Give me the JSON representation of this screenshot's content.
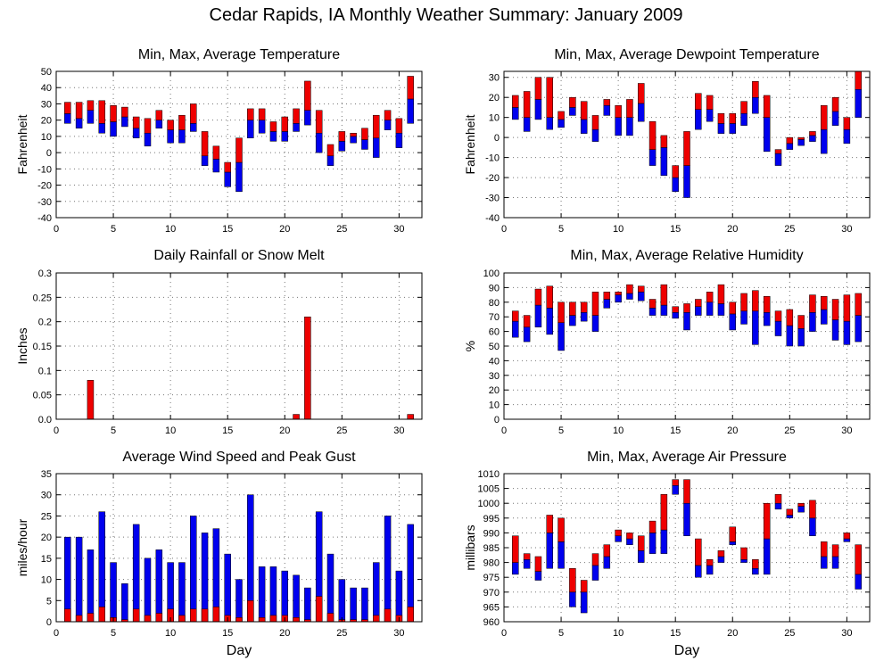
{
  "title": "Cedar Rapids, IA Monthly Weather Summary: January 2009",
  "colors": {
    "min_part": "#0000ee",
    "max_part": "#ee0000",
    "grid": "#777777"
  },
  "chart_data": [
    {
      "id": "temperature",
      "type": "bar",
      "style": "floating-min-avg-max",
      "title": "Min, Max, Average Temperature",
      "xlabel": "",
      "ylabel": "Fahrenheit",
      "xlim": [
        0,
        32
      ],
      "ylim": [
        -40,
        50
      ],
      "xticks": [
        0,
        5,
        10,
        15,
        20,
        25,
        30
      ],
      "yticks": [
        -40,
        -30,
        -20,
        -10,
        0,
        10,
        20,
        30,
        40,
        50
      ],
      "grid": true,
      "days": [
        1,
        2,
        3,
        4,
        5,
        6,
        7,
        8,
        9,
        10,
        11,
        12,
        13,
        14,
        15,
        16,
        17,
        18,
        19,
        20,
        21,
        22,
        23,
        24,
        25,
        26,
        27,
        28,
        29,
        30,
        31
      ],
      "series": [
        {
          "name": "min",
          "values": [
            18,
            15,
            18,
            12,
            10,
            16,
            9,
            4,
            15,
            6,
            6,
            13,
            -8,
            -12,
            -21,
            -24,
            9,
            12,
            7,
            7,
            13,
            17,
            0,
            -8,
            1,
            6,
            2,
            -3,
            14,
            3,
            18
          ]
        },
        {
          "name": "avg",
          "values": [
            24,
            21,
            26,
            18,
            19,
            22,
            15,
            12,
            20,
            14,
            14,
            18,
            -2,
            -4,
            -12,
            -6,
            20,
            20,
            13,
            13,
            18,
            26,
            12,
            -2,
            7,
            10,
            8,
            9,
            20,
            12,
            33
          ]
        },
        {
          "name": "max",
          "values": [
            31,
            31,
            32,
            32,
            29,
            28,
            22,
            21,
            26,
            20,
            23,
            30,
            13,
            4,
            -6,
            9,
            27,
            27,
            19,
            22,
            27,
            44,
            26,
            5,
            13,
            12,
            15,
            23,
            26,
            21,
            47
          ]
        }
      ]
    },
    {
      "id": "dewpoint",
      "type": "bar",
      "style": "floating-min-avg-max",
      "title": "Min, Max, Average Dewpoint Temperature",
      "xlabel": "",
      "ylabel": "Fahrenheit",
      "xlim": [
        0,
        32
      ],
      "ylim": [
        -40,
        33
      ],
      "xticks": [
        0,
        5,
        10,
        15,
        20,
        25,
        30
      ],
      "yticks": [
        -40,
        -30,
        -20,
        -10,
        0,
        10,
        20,
        30
      ],
      "grid": true,
      "days": [
        1,
        2,
        3,
        4,
        5,
        6,
        7,
        8,
        9,
        10,
        11,
        12,
        13,
        14,
        15,
        16,
        17,
        18,
        19,
        20,
        21,
        22,
        23,
        24,
        25,
        26,
        27,
        28,
        29,
        30,
        31
      ],
      "series": [
        {
          "name": "min",
          "values": [
            9,
            3,
            9,
            4,
            5,
            11,
            2,
            -2,
            11,
            1,
            1,
            8,
            -14,
            -19,
            -27,
            -30,
            4,
            8,
            2,
            2,
            6,
            12,
            -7,
            -14,
            -6,
            -4,
            -2,
            -8,
            6,
            -3,
            10
          ]
        },
        {
          "name": "avg",
          "values": [
            15,
            10,
            19,
            10,
            9,
            15,
            9,
            4,
            16,
            10,
            10,
            17,
            -6,
            -5,
            -20,
            -14,
            14,
            14,
            7,
            7,
            12,
            20,
            10,
            -8,
            -3,
            -1,
            1,
            4,
            13,
            4,
            24
          ]
        },
        {
          "name": "max",
          "values": [
            21,
            23,
            30,
            30,
            13,
            20,
            18,
            11,
            19,
            16,
            19,
            27,
            8,
            1,
            -14,
            3,
            22,
            21,
            12,
            12,
            18,
            28,
            21,
            -6,
            0,
            0,
            3,
            16,
            20,
            10,
            33
          ]
        }
      ]
    },
    {
      "id": "rainfall",
      "type": "bar",
      "style": "single",
      "title": "Daily Rainfall or Snow Melt",
      "xlabel": "",
      "ylabel": "Inches",
      "xlim": [
        0,
        32
      ],
      "ylim": [
        0,
        0.3
      ],
      "xticks": [
        0,
        5,
        10,
        15,
        20,
        25,
        30
      ],
      "yticks": [
        0,
        0.05,
        0.1,
        0.15,
        0.2,
        0.25,
        0.3
      ],
      "ytick_labels": [
        "0.0",
        "0.05",
        "0.1",
        "0.15",
        "0.2",
        "0.25",
        "0.3"
      ],
      "grid": true,
      "days": [
        3,
        21,
        22,
        31
      ],
      "values": [
        0.08,
        0.01,
        0.21,
        0.01
      ]
    },
    {
      "id": "humidity",
      "type": "bar",
      "style": "floating-min-avg-max",
      "title": "Min, Max, Average Relative Humidity",
      "xlabel": "",
      "ylabel": "%",
      "xlim": [
        0,
        32
      ],
      "ylim": [
        0,
        100
      ],
      "xticks": [
        0,
        5,
        10,
        15,
        20,
        25,
        30
      ],
      "yticks": [
        0,
        10,
        20,
        30,
        40,
        50,
        60,
        70,
        80,
        90,
        100
      ],
      "grid": true,
      "days": [
        1,
        2,
        3,
        4,
        5,
        6,
        7,
        8,
        9,
        10,
        11,
        12,
        13,
        14,
        15,
        16,
        17,
        18,
        19,
        20,
        21,
        22,
        23,
        24,
        25,
        26,
        27,
        28,
        29,
        30,
        31
      ],
      "series": [
        {
          "name": "min",
          "values": [
            56,
            53,
            63,
            58,
            47,
            64,
            67,
            60,
            76,
            80,
            82,
            81,
            71,
            71,
            69,
            61,
            71,
            71,
            71,
            61,
            65,
            51,
            64,
            57,
            50,
            50,
            60,
            65,
            54,
            51,
            53
          ]
        },
        {
          "name": "avg",
          "values": [
            67,
            63,
            78,
            76,
            66,
            71,
            73,
            71,
            82,
            85,
            86,
            87,
            76,
            78,
            73,
            73,
            77,
            80,
            79,
            72,
            74,
            74,
            73,
            67,
            64,
            62,
            73,
            75,
            68,
            67,
            71
          ]
        },
        {
          "name": "max",
          "values": [
            74,
            71,
            89,
            91,
            80,
            80,
            80,
            87,
            87,
            87,
            92,
            91,
            82,
            92,
            77,
            79,
            82,
            87,
            92,
            80,
            86,
            88,
            84,
            74,
            75,
            71,
            85,
            84,
            82,
            85,
            86
          ]
        }
      ]
    },
    {
      "id": "wind",
      "type": "bar",
      "style": "wind-overlay",
      "title": "Average Wind Speed and Peak Gust",
      "xlabel": "Day",
      "ylabel": "miles/hour",
      "xlim": [
        0,
        32
      ],
      "ylim": [
        0,
        35
      ],
      "xticks": [
        0,
        5,
        10,
        15,
        20,
        25,
        30
      ],
      "yticks": [
        0,
        5,
        10,
        15,
        20,
        25,
        30,
        35
      ],
      "grid": true,
      "days": [
        1,
        2,
        3,
        4,
        5,
        6,
        7,
        8,
        9,
        10,
        11,
        12,
        13,
        14,
        15,
        16,
        17,
        18,
        19,
        20,
        21,
        22,
        23,
        24,
        25,
        26,
        27,
        28,
        29,
        30,
        31
      ],
      "series": [
        {
          "name": "average",
          "values": [
            3,
            1.5,
            2,
            3.5,
            1,
            0.5,
            3,
            1.5,
            2,
            3,
            1.5,
            3,
            3,
            3.5,
            1.5,
            1,
            5,
            1,
            1.5,
            1.5,
            1,
            0.5,
            6,
            2,
            0.5,
            0.5,
            0.5,
            1.5,
            3,
            1.5,
            3.5
          ]
        },
        {
          "name": "peak",
          "values": [
            20,
            20,
            17,
            26,
            14,
            9,
            23,
            15,
            17,
            14,
            14,
            25,
            21,
            22,
            16,
            10,
            30,
            13,
            13,
            12,
            11,
            8,
            26,
            16,
            10,
            8,
            8,
            14,
            25,
            12,
            23
          ]
        }
      ]
    },
    {
      "id": "pressure",
      "type": "bar",
      "style": "floating-min-avg-max",
      "title": "Min, Max, Average Air Pressure",
      "xlabel": "Day",
      "ylabel": "millibars",
      "xlim": [
        0,
        32
      ],
      "ylim": [
        960,
        1010
      ],
      "xticks": [
        0,
        5,
        10,
        15,
        20,
        25,
        30
      ],
      "yticks": [
        960,
        965,
        970,
        975,
        980,
        985,
        990,
        995,
        1000,
        1005,
        1010
      ],
      "grid": true,
      "days": [
        1,
        2,
        3,
        4,
        5,
        6,
        7,
        8,
        9,
        10,
        11,
        12,
        13,
        14,
        15,
        16,
        17,
        18,
        19,
        20,
        21,
        22,
        23,
        24,
        25,
        26,
        27,
        28,
        29,
        30,
        31
      ],
      "series": [
        {
          "name": "min",
          "values": [
            976,
            978,
            974,
            978,
            978,
            965,
            963,
            974,
            978,
            987,
            986,
            980,
            983,
            983,
            1003,
            989,
            975,
            976,
            980,
            986,
            980,
            976,
            976,
            998,
            995,
            997,
            989,
            978,
            978,
            987,
            971
          ]
        },
        {
          "name": "avg",
          "values": [
            980,
            981,
            977,
            990,
            987,
            970,
            970,
            979,
            982,
            989,
            988,
            984,
            990,
            991,
            1006,
            1000,
            979,
            979,
            982,
            987,
            981,
            978,
            988,
            1000,
            996,
            999,
            995,
            982,
            982,
            988,
            976
          ]
        },
        {
          "name": "max",
          "values": [
            989,
            983,
            982,
            996,
            995,
            978,
            974,
            983,
            986,
            991,
            990,
            989,
            994,
            1003,
            1008,
            1008,
            988,
            981,
            984,
            992,
            985,
            981,
            1000,
            1003,
            998,
            1000,
            1001,
            987,
            986,
            990,
            986
          ]
        }
      ]
    }
  ]
}
